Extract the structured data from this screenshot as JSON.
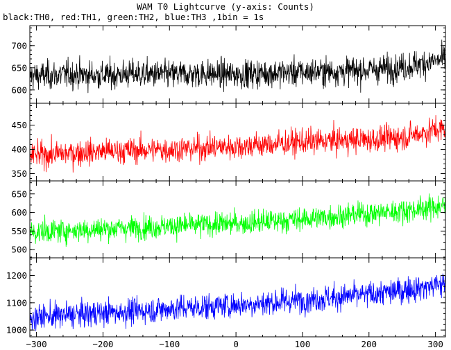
{
  "header": {
    "title": "WAM T0 Lightcurve (y-axis: Counts)",
    "subtitle": "black:TH0, red:TH1, green:TH2, blue:TH3 ,1bin = 1s"
  },
  "chart_data": {
    "type": "line",
    "title": "WAM T0 Lightcurve (y-axis: Counts)",
    "subtitle": "black:TH0, red:TH1, green:TH2, blue:TH3 ,1bin = 1s",
    "xlabel": "",
    "ylabel": "Counts",
    "xlim": [
      -310,
      315
    ],
    "x_ticks": [
      -300,
      -200,
      -100,
      0,
      100,
      200,
      300
    ],
    "grid": false,
    "panels": [
      {
        "name": "TH0",
        "color": "#000000",
        "ylim": [
          570,
          745
        ],
        "y_ticks": [
          600,
          650,
          700
        ],
        "x": [
          -300,
          -250,
          -200,
          -150,
          -100,
          -50,
          0,
          50,
          100,
          150,
          200,
          250,
          300,
          310
        ],
        "y": [
          632,
          635,
          633,
          636,
          634,
          637,
          635,
          638,
          640,
          642,
          645,
          652,
          665,
          668
        ],
        "noise_amplitude": 30
      },
      {
        "name": "TH1",
        "color": "#ff0000",
        "ylim": [
          335,
          495
        ],
        "y_ticks": [
          350,
          400,
          450
        ],
        "x": [
          -300,
          -250,
          -200,
          -150,
          -100,
          -50,
          0,
          50,
          100,
          150,
          200,
          250,
          300,
          310
        ],
        "y": [
          388,
          392,
          396,
          398,
          400,
          403,
          406,
          410,
          415,
          418,
          420,
          425,
          440,
          442
        ],
        "noise_amplitude": 25
      },
      {
        "name": "TH2",
        "color": "#00ff00",
        "ylim": [
          478,
          685
        ],
        "y_ticks": [
          500,
          550,
          600,
          650
        ],
        "x": [
          -300,
          -250,
          -200,
          -150,
          -100,
          -50,
          0,
          50,
          100,
          150,
          200,
          250,
          300,
          310
        ],
        "y": [
          548,
          552,
          556,
          560,
          563,
          567,
          570,
          576,
          582,
          590,
          597,
          604,
          615,
          618
        ],
        "noise_amplitude": 30
      },
      {
        "name": "TH3",
        "color": "#0000ff",
        "ylim": [
          975,
          1265
        ],
        "y_ticks": [
          1000,
          1100,
          1200
        ],
        "x": [
          -300,
          -250,
          -200,
          -150,
          -100,
          -50,
          0,
          50,
          100,
          150,
          200,
          250,
          300,
          310
        ],
        "y": [
          1048,
          1055,
          1063,
          1070,
          1078,
          1085,
          1092,
          1100,
          1110,
          1120,
          1130,
          1145,
          1165,
          1168
        ],
        "noise_amplitude": 45
      }
    ]
  }
}
